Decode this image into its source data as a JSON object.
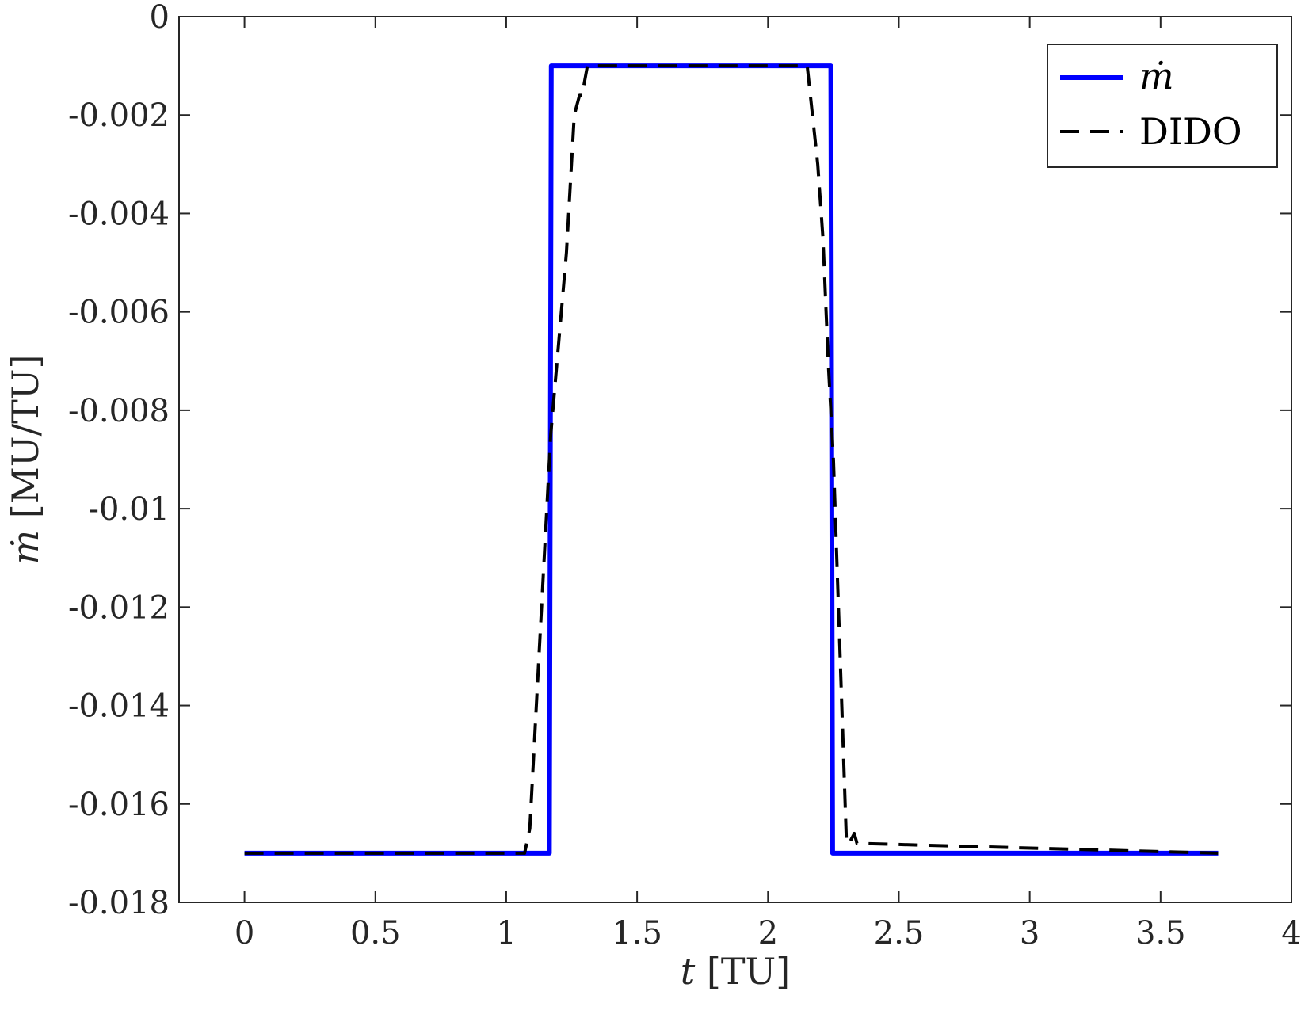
{
  "chart_data": {
    "type": "line",
    "xlabel": {
      "var": "t",
      "unit": " [TU]"
    },
    "ylabel": {
      "var": "ṁ",
      "unit": " [MU/TU]"
    },
    "xlim": [
      -0.25,
      4
    ],
    "ylim": [
      -0.018,
      0
    ],
    "x_ticks": [
      "0",
      "0.5",
      "1",
      "1.5",
      "2",
      "2.5",
      "3",
      "3.5",
      "4"
    ],
    "x_tick_values": [
      0,
      0.5,
      1,
      1.5,
      2,
      2.5,
      3,
      3.5,
      4
    ],
    "y_ticks": [
      "0",
      "-0.002",
      "-0.004",
      "-0.006",
      "-0.008",
      "-0.01",
      "-0.012",
      "-0.014",
      "-0.016",
      "-0.018"
    ],
    "y_tick_values": [
      0,
      -0.002,
      -0.004,
      -0.006,
      -0.008,
      -0.01,
      -0.012,
      -0.014,
      -0.016,
      -0.018
    ],
    "grid": false,
    "legend_position": "top-right",
    "series": [
      {
        "name": "ṁ",
        "color": "#0000ff",
        "style": "solid",
        "x": [
          0,
          1.165,
          1.172,
          2.24,
          2.247,
          3.72
        ],
        "y": [
          -0.017,
          -0.017,
          -0.001,
          -0.001,
          -0.017,
          -0.017
        ]
      },
      {
        "name": "DIDO",
        "color": "#000000",
        "style": "dashed",
        "x": [
          0,
          1.07,
          1.09,
          1.17,
          1.23,
          1.26,
          1.28,
          1.29,
          1.3,
          1.31,
          2.15,
          2.19,
          2.21,
          2.23,
          2.25,
          2.3,
          2.31,
          2.32,
          2.33,
          2.34,
          3.72
        ],
        "y": [
          -0.017,
          -0.017,
          -0.0165,
          -0.0085,
          -0.0048,
          -0.002,
          -0.0016,
          -0.0016,
          -0.0013,
          -0.001,
          -0.001,
          -0.003,
          -0.0045,
          -0.007,
          -0.009,
          -0.0168,
          -0.0168,
          -0.0167,
          -0.0166,
          -0.0168,
          -0.017
        ]
      }
    ]
  }
}
